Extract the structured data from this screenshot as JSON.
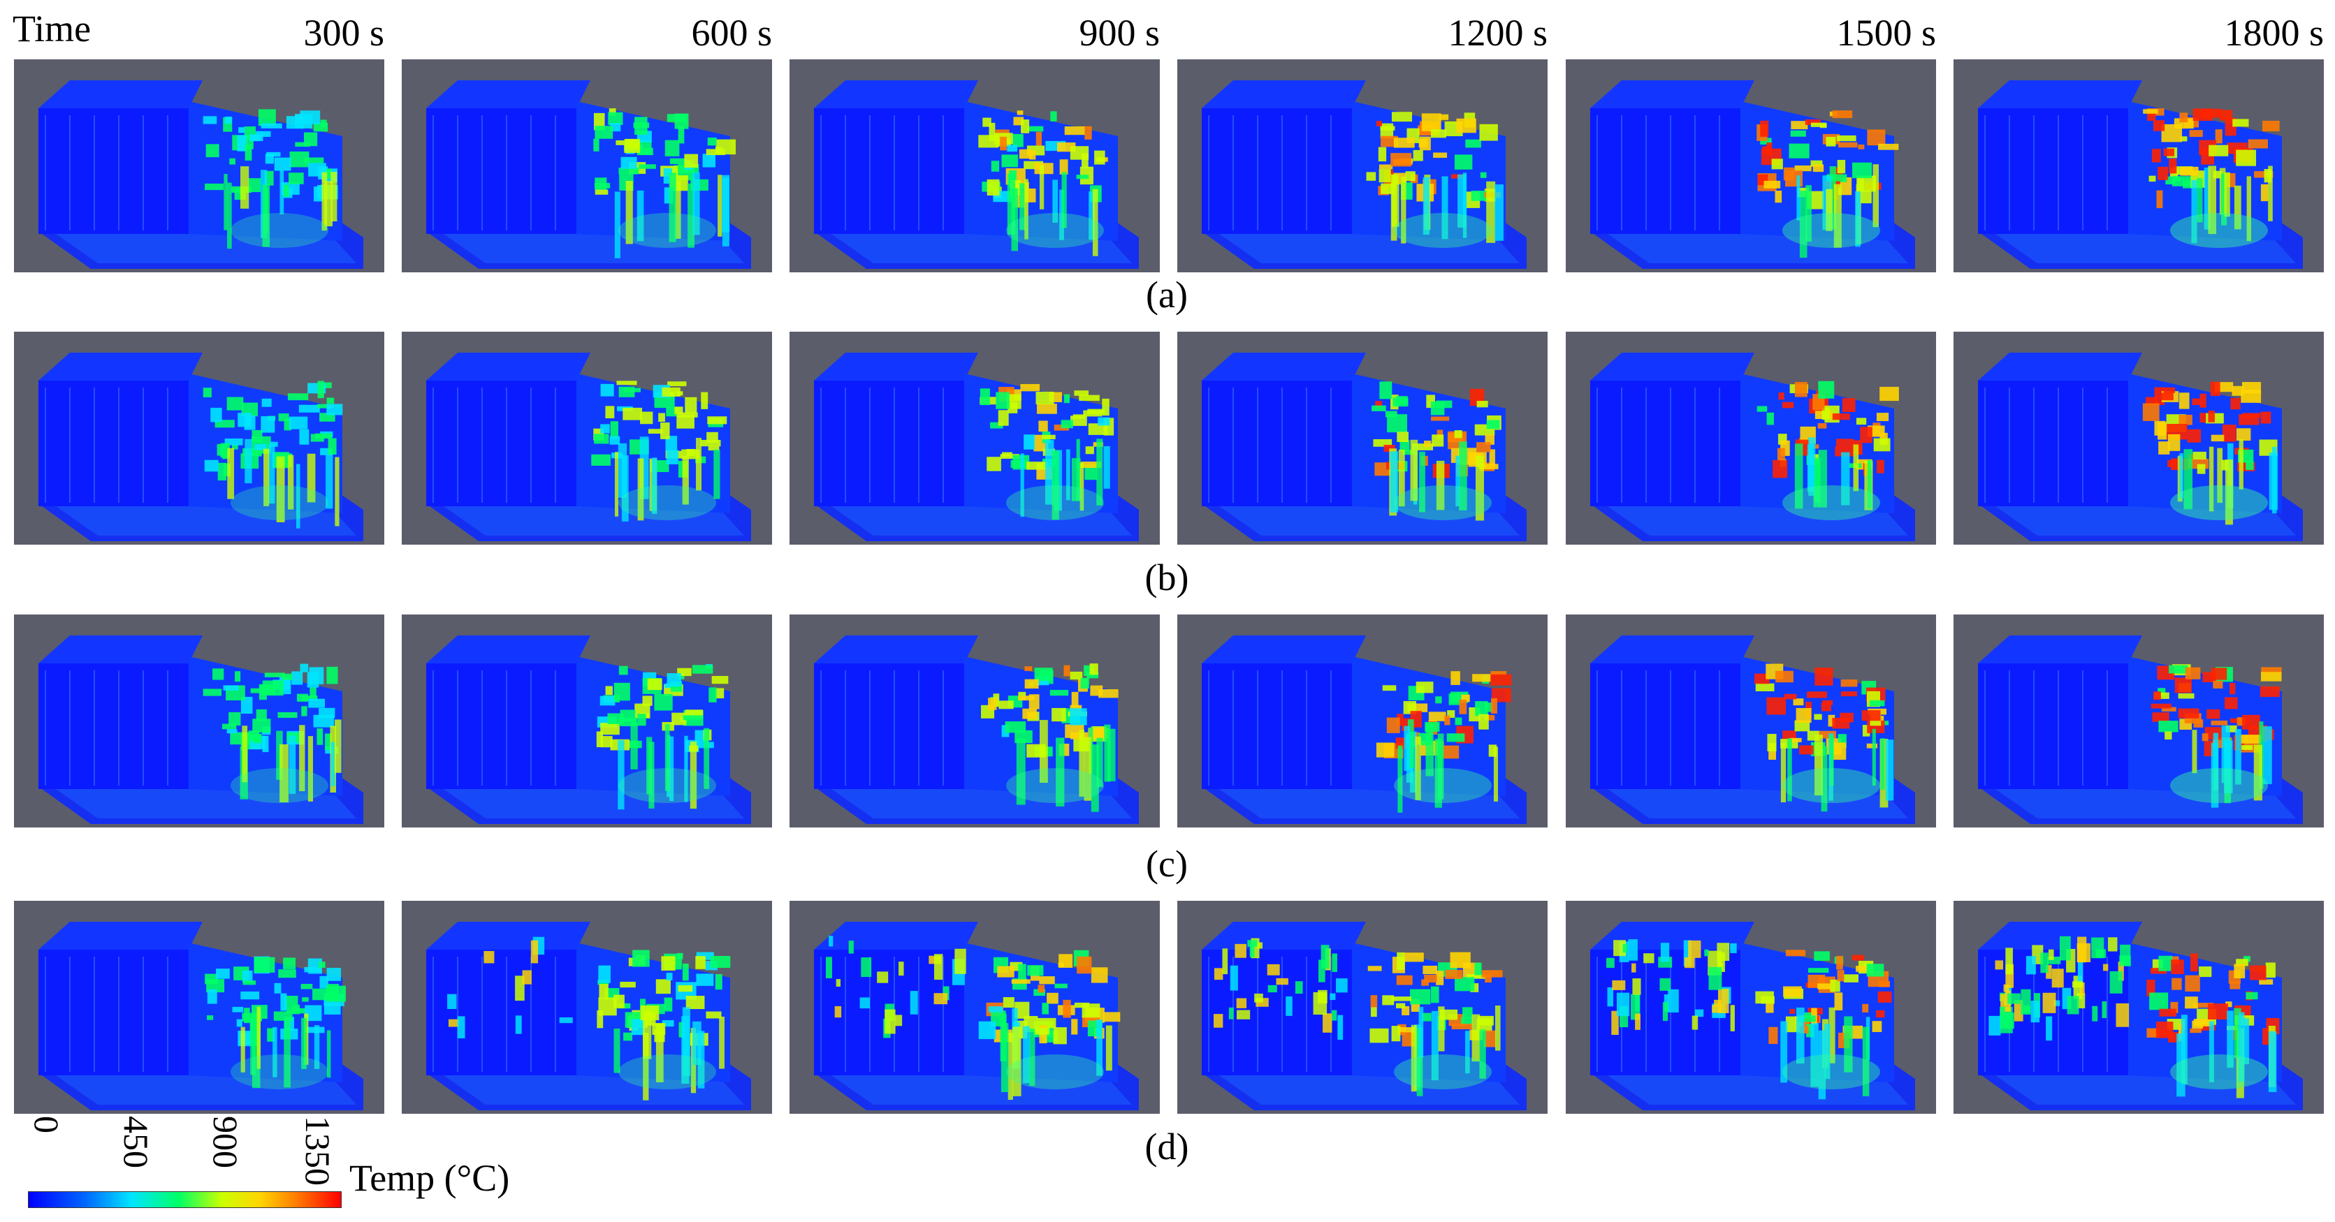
{
  "header": {
    "time_label": "Time"
  },
  "times": [
    "300 s",
    "600 s",
    "900 s",
    "1200 s",
    "1500 s",
    "1800 s"
  ],
  "rows": [
    {
      "label": "(a)"
    },
    {
      "label": "(b)"
    },
    {
      "label": "(c)"
    },
    {
      "label": "(d)"
    }
  ],
  "colorbar": {
    "title": "Temp (°C)",
    "ticks": [
      "0",
      "450",
      "900",
      "1350"
    ],
    "colors": [
      "#0000ff",
      "#00e5ff",
      "#00ff66",
      "#ffd500",
      "#ff0000"
    ]
  },
  "panel_background": "#5b5d6b"
}
